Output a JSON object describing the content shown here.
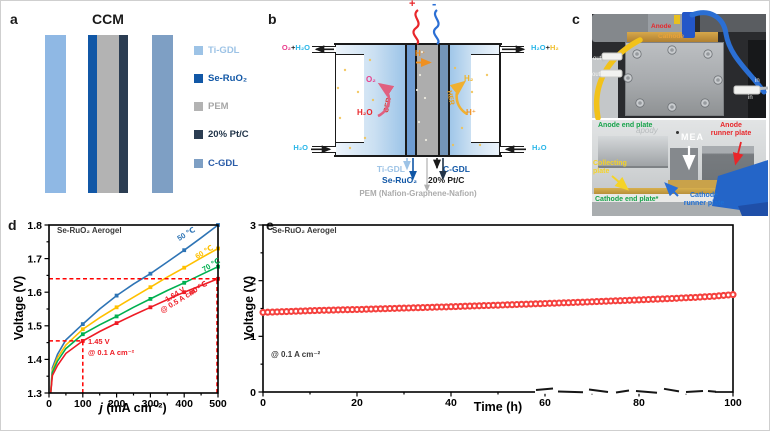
{
  "figure": {
    "panel_a": {
      "label": "a",
      "title": "CCM",
      "layers": [
        {
          "name": "Ti-GDL",
          "color": "#8FB8E4"
        },
        {
          "name": "Se-RuO₂",
          "color": "#1157A6"
        },
        {
          "name": "PEM",
          "color": "#B3B3B3"
        },
        {
          "name": "20% Pt/C",
          "color": "#2B3D52"
        },
        {
          "name": "C-GDL",
          "color": "#7E9FC4"
        }
      ],
      "legend": [
        {
          "label": "Ti-GDL",
          "swatch": "#9DC3E6",
          "text_color": "#9DC3E6"
        },
        {
          "label": "Se-RuO₂",
          "swatch": "#1157A6",
          "text_color": "#1157A6"
        },
        {
          "label": "PEM",
          "swatch": "#B3B3B3",
          "text_color": "#A6A6A6"
        },
        {
          "label": "20% Pt/C",
          "swatch": "#2B3D52",
          "text_color": "#22354A"
        },
        {
          "label": "C-GDL",
          "swatch": "#7E9FC4",
          "text_color": "#2A5CA8"
        }
      ]
    },
    "panel_b": {
      "label": "b",
      "plus": "+",
      "minus": "-",
      "out_left": {
        "a": "O₂",
        "plus": "+",
        "b": "H₂O"
      },
      "in_left": "H₂O",
      "out_right": {
        "a": "H₂O",
        "plus": "+",
        "b": "H₂"
      },
      "in_right": "H₂O",
      "anode_gas": "O₂",
      "anode_reaction": "OER",
      "anode_feed": "H₂O",
      "cathode_gas": "H₂",
      "cathode_reaction": "HER",
      "cathode_ion": "H⁺",
      "membrane_ion": "H⁺",
      "labels": {
        "ti_gdl": "Ti-GDL",
        "se_ruo2": "Se-RuO₂",
        "c_gdl": "C-GDL",
        "pt_c": "20% Pt/C",
        "pem": "PEM (Nafion-Graphene-Nafion)"
      }
    },
    "panel_c": {
      "label": "c",
      "top_photo": {
        "anode": "Anode",
        "cathode": "Cathode",
        "out1": "out",
        "out2": "out",
        "in1": "in",
        "in2": "in"
      },
      "bottom_photo": {
        "anode_end_plate": "Anode end plate",
        "anode_runner_plate_1": "Anode",
        "anode_runner_plate_2": "runner plate",
        "mea": "MEA",
        "collecting_plate_1": "Collecting",
        "collecting_plate_2": "plate",
        "cathode_end_plate": "Cathode end plate*",
        "cathode_runner_plate_1": "Cathode",
        "cathode_runner_plate_2": "runner plate",
        "watermark": "apody"
      }
    },
    "panel_d": {
      "label": "d"
    },
    "panel_e": {
      "label": "e"
    }
  },
  "chart_data": [
    {
      "id": "polarization-curves",
      "type": "line",
      "title": "Se-RuO₂ Aerogel",
      "xlabel_italic": "j",
      "xlabel_rest": " (mA cm⁻²)",
      "ylabel": "Voltage (V)",
      "xlim": [
        0,
        500
      ],
      "ylim": [
        1.3,
        1.8
      ],
      "xticks": [
        0,
        100,
        200,
        300,
        400,
        500
      ],
      "yticks": [
        "1.3",
        "1.4",
        "1.5",
        "1.6",
        "1.7",
        "1.8"
      ],
      "x_minor_step": 50,
      "y_minor_step": 0.05,
      "x": [
        5,
        10,
        25,
        50,
        100,
        150,
        200,
        250,
        300,
        350,
        400,
        450,
        500
      ],
      "series": [
        {
          "name": "50 ℃",
          "color": "#2E74B5",
          "values": [
            1.3,
            1.375,
            1.415,
            1.458,
            1.505,
            1.55,
            1.59,
            1.624,
            1.655,
            1.69,
            1.725,
            1.762,
            1.8
          ]
        },
        {
          "name": "60 ℃",
          "color": "#FFC000",
          "values": [
            1.3,
            1.368,
            1.405,
            1.443,
            1.49,
            1.524,
            1.555,
            1.585,
            1.615,
            1.645,
            1.673,
            1.702,
            1.73
          ]
        },
        {
          "name": "70 ℃",
          "color": "#00B050",
          "values": [
            1.3,
            1.362,
            1.395,
            1.432,
            1.475,
            1.503,
            1.528,
            1.555,
            1.58,
            1.605,
            1.628,
            1.652,
            1.676
          ]
        },
        {
          "name": "80 ℃",
          "color": "#EE1C25",
          "values": [
            1.3,
            1.352,
            1.382,
            1.418,
            1.455,
            1.483,
            1.508,
            1.532,
            1.555,
            1.578,
            1.6,
            1.62,
            1.64
          ]
        }
      ],
      "marker_x": [
        100,
        200,
        300,
        400,
        500
      ],
      "guides": [
        {
          "type": "h",
          "v": 1.64,
          "x1": 0,
          "x2": 500
        },
        {
          "type": "v",
          "j": 500,
          "v1": 1.3,
          "v2": 1.64
        },
        {
          "type": "h",
          "v": 1.455,
          "x1": 0,
          "x2": 100
        },
        {
          "type": "v",
          "j": 100,
          "v1": 1.3,
          "v2": 1.455
        }
      ],
      "guide_color": "#FF0000",
      "ann_v1": "1.45 V",
      "ann_j1": "@ 0.1 A cm⁻²",
      "ann_v2": "1.64 V",
      "ann_j2": "@ 0.5 A cm⁻²"
    },
    {
      "id": "stability-test",
      "type": "scatter",
      "title": "Se-RuO₂ Aerogel",
      "note": "@ 0.1 A cm⁻²",
      "xlabel": "Time (h)",
      "ylabel": "Voltage (V)",
      "xlim": [
        0,
        100
      ],
      "ylim": [
        0,
        3
      ],
      "xticks": [
        0,
        20,
        40,
        60,
        80,
        100
      ],
      "yticks": [
        "0",
        "1",
        "2",
        "3"
      ],
      "x_minor_step": 10,
      "y_minor_step": 0.5,
      "marker_color": "#F5413E",
      "x": [
        0,
        2,
        4,
        6,
        8,
        10,
        12,
        14,
        16,
        18,
        20,
        22,
        24,
        26,
        28,
        30,
        32,
        34,
        36,
        38,
        40,
        42,
        44,
        46,
        48,
        50,
        52,
        54,
        56,
        58,
        60,
        62,
        64,
        66,
        68,
        70,
        72,
        74,
        76,
        78,
        80,
        82,
        84,
        86,
        88,
        90,
        92,
        94,
        96,
        98,
        100
      ],
      "values": [
        1.43,
        1.436,
        1.442,
        1.448,
        1.454,
        1.46,
        1.465,
        1.47,
        1.474,
        1.478,
        1.482,
        1.487,
        1.492,
        1.497,
        1.502,
        1.507,
        1.512,
        1.517,
        1.522,
        1.527,
        1.532,
        1.538,
        1.543,
        1.549,
        1.554,
        1.56,
        1.566,
        1.572,
        1.578,
        1.584,
        1.59,
        1.596,
        1.602,
        1.608,
        1.614,
        1.62,
        1.627,
        1.634,
        1.641,
        1.648,
        1.655,
        1.662,
        1.669,
        1.676,
        1.684,
        1.692,
        1.7,
        1.71,
        1.72,
        1.735,
        1.75
      ]
    }
  ]
}
